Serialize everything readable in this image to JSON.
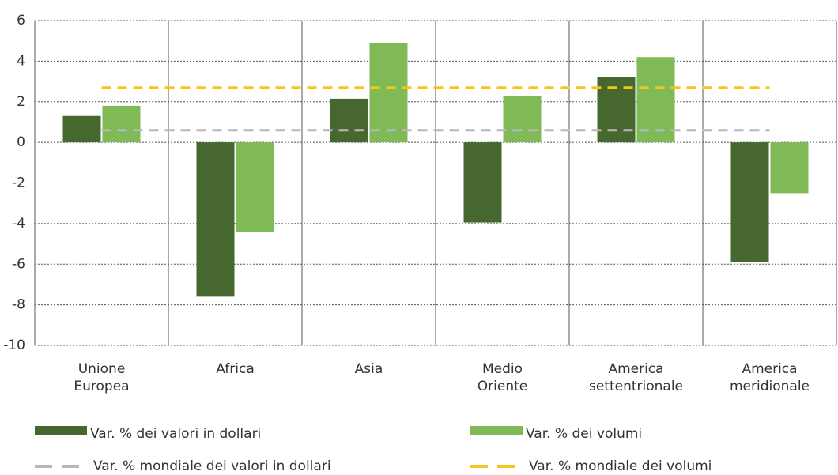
{
  "chart_data": {
    "type": "bar",
    "categories": [
      "Unione Europea",
      "Africa",
      "Asia",
      "Medio Oriente",
      "America settentrionale",
      "America meridionale"
    ],
    "series": [
      {
        "name": "Var. % dei valori in dollari",
        "color": "#46682f",
        "values": [
          1.3,
          -7.6,
          2.15,
          -3.95,
          3.2,
          -5.9
        ]
      },
      {
        "name": "Var. % dei volumi",
        "color": "#7fba56",
        "values": [
          1.8,
          -4.4,
          4.9,
          2.3,
          4.2,
          -2.5
        ]
      }
    ],
    "reference_lines": [
      {
        "name": "Var. % mondiale dei valori in dollari",
        "color": "#b7b7b7",
        "value": 0.6
      },
      {
        "name": "Var. % mondiale dei volumi",
        "color": "#f5c518",
        "value": 2.7
      }
    ],
    "ylim": [
      -10,
      6
    ],
    "yticks": [
      -10,
      -8,
      -6,
      -4,
      -2,
      0,
      2,
      4,
      6
    ],
    "grid": true
  }
}
